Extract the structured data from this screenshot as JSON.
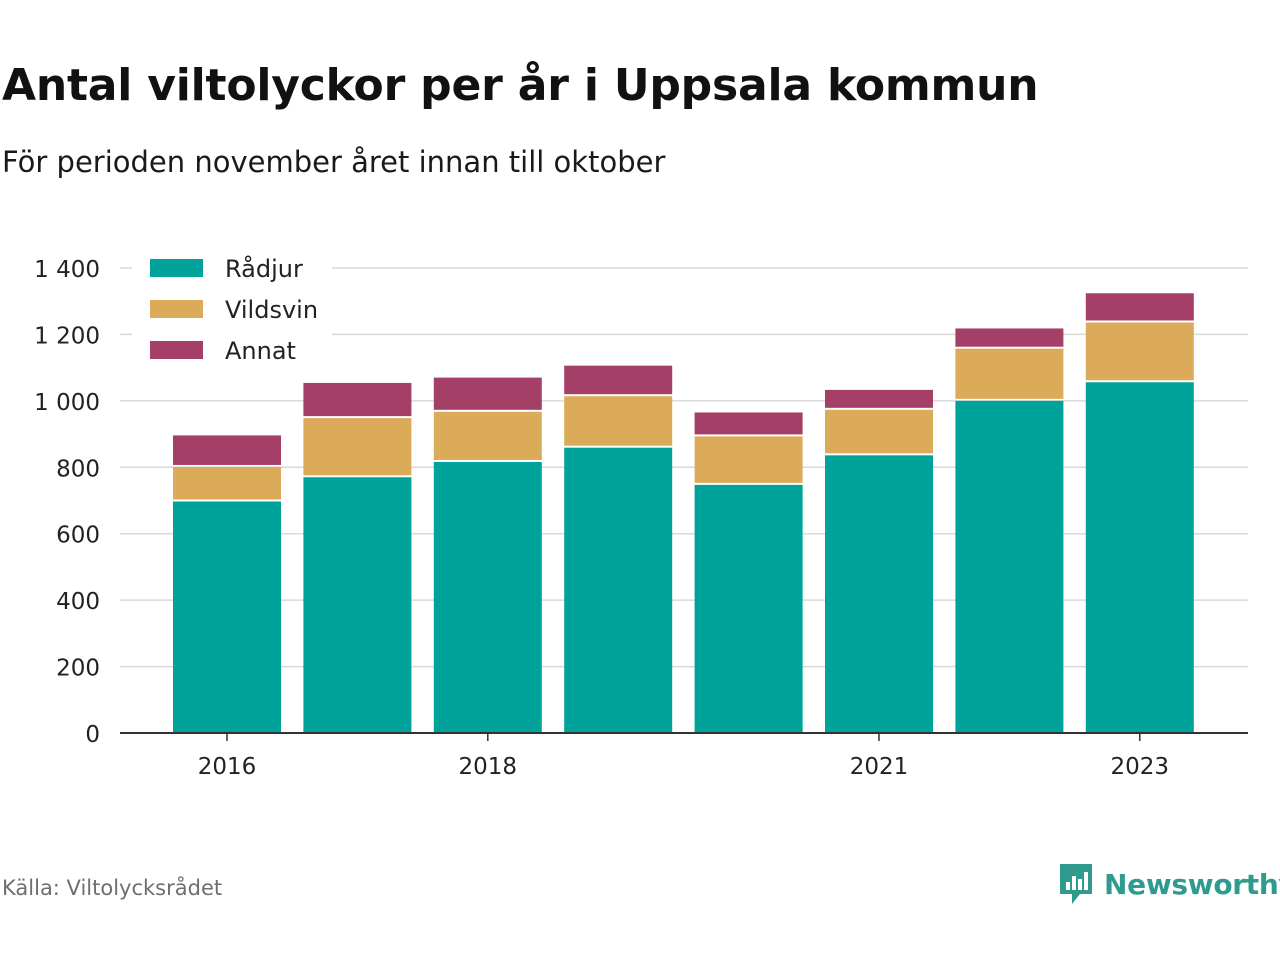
{
  "title": "Antal viltolyckor per år i Uppsala kommun",
  "subtitle": "För perioden november året innan till oktober",
  "source": "Källa: Viltolycksrådet",
  "brand": "Newsworthy",
  "colors": {
    "Rådjur": "#00a39a",
    "Vildsvin": "#dbab5a",
    "Annat": "#a43f68",
    "grid": "#d9d9d9",
    "axis": "#333333",
    "brand": "#2f9b8e"
  },
  "chart_data": {
    "type": "bar",
    "stacked": true,
    "categories": [
      "2016",
      "2017",
      "2018",
      "2019",
      "2020",
      "2021",
      "2022",
      "2023"
    ],
    "x_tick_labels": [
      "2016",
      "",
      "2018",
      "",
      "",
      "2021",
      "",
      "2023"
    ],
    "series": [
      {
        "name": "Rådjur",
        "values": [
          697,
          770,
          816,
          859,
          747,
          836,
          1000,
          1056
        ]
      },
      {
        "name": "Vildsvin",
        "values": [
          104,
          178,
          151,
          155,
          146,
          137,
          157,
          180
        ]
      },
      {
        "name": "Annat",
        "values": [
          95,
          106,
          103,
          92,
          72,
          60,
          61,
          88
        ]
      }
    ],
    "ylim": [
      0,
      1400
    ],
    "yticks": [
      0,
      200,
      400,
      600,
      800,
      1000,
      1200,
      1400
    ],
    "ytick_labels": [
      "0",
      "200",
      "400",
      "600",
      "800",
      "1 000",
      "1 200",
      "1 400"
    ],
    "grid": true,
    "legend_position": "top-left",
    "xlabel": "",
    "ylabel": ""
  }
}
